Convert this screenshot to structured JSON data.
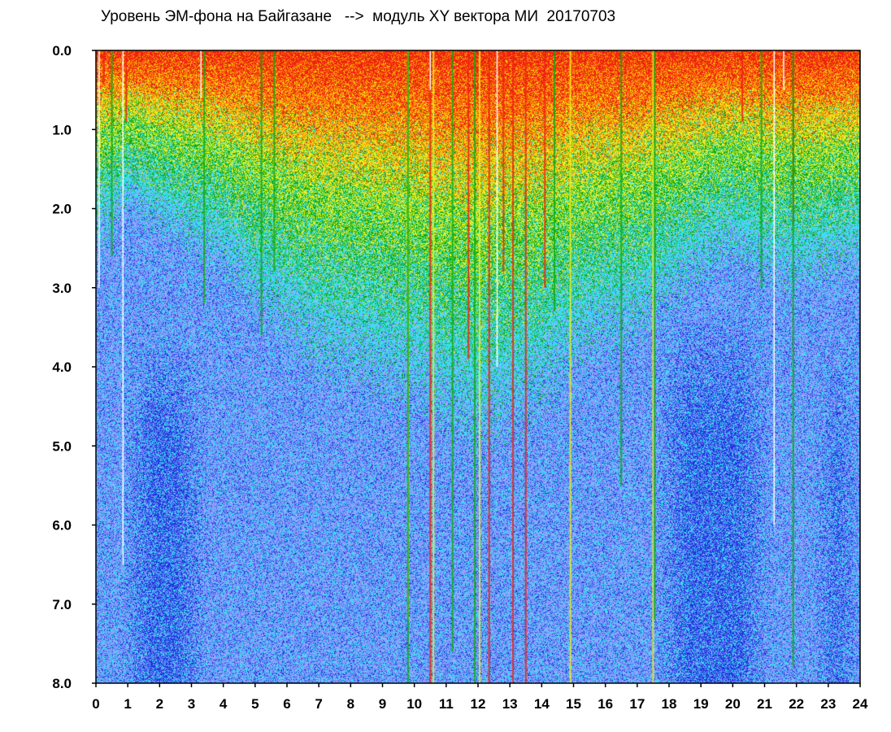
{
  "title": "Уровень ЭМ-фона на Байгазане   -->  модуль XY вектора МИ  20170703",
  "chart_data": {
    "type": "heatmap",
    "x_range": [
      0,
      24
    ],
    "y_range": [
      0,
      8
    ],
    "y_inverted": true,
    "x_ticks": [
      "0",
      "1",
      "2",
      "3",
      "4",
      "5",
      "6",
      "7",
      "8",
      "9",
      "10",
      "11",
      "12",
      "13",
      "14",
      "15",
      "16",
      "17",
      "18",
      "19",
      "20",
      "21",
      "22",
      "23",
      "24"
    ],
    "y_ticks": [
      "0.0",
      "1.0",
      "2.0",
      "3.0",
      "4.0",
      "5.0",
      "6.0",
      "7.0",
      "8.0"
    ],
    "grid": false,
    "legend": "none",
    "colorscale": [
      "#ffffff",
      "#2233dd",
      "#6a7cf5",
      "#9fa8ff",
      "#33e0f0",
      "#11aa11",
      "#eeee22",
      "#ff9900",
      "#ee2211"
    ],
    "intensity_profile": [
      {
        "hour": 0,
        "depth": 2.0
      },
      {
        "hour": 1,
        "depth": 1.6
      },
      {
        "hour": 2,
        "depth": 1.8
      },
      {
        "hour": 3,
        "depth": 2.0
      },
      {
        "hour": 4,
        "depth": 2.2
      },
      {
        "hour": 5,
        "depth": 2.6
      },
      {
        "hour": 6,
        "depth": 2.9
      },
      {
        "hour": 7,
        "depth": 3.2
      },
      {
        "hour": 8,
        "depth": 3.3
      },
      {
        "hour": 9,
        "depth": 3.4
      },
      {
        "hour": 10,
        "depth": 3.5
      },
      {
        "hour": 11,
        "depth": 3.8
      },
      {
        "hour": 12,
        "depth": 4.0
      },
      {
        "hour": 13,
        "depth": 3.8
      },
      {
        "hour": 14,
        "depth": 3.6
      },
      {
        "hour": 15,
        "depth": 3.2
      },
      {
        "hour": 16,
        "depth": 3.0
      },
      {
        "hour": 17,
        "depth": 2.9
      },
      {
        "hour": 18,
        "depth": 2.6
      },
      {
        "hour": 19,
        "depth": 2.3
      },
      {
        "hour": 20,
        "depth": 2.1
      },
      {
        "hour": 21,
        "depth": 2.3
      },
      {
        "hour": 22,
        "depth": 2.4
      },
      {
        "hour": 23,
        "depth": 2.3
      },
      {
        "hour": 24,
        "depth": 2.2
      }
    ],
    "dark_regions": [
      {
        "hour_from": 0.8,
        "hour_to": 3.5,
        "level_from": 3.5,
        "level_to": 8.0
      },
      {
        "hour_from": 17.6,
        "hour_to": 21.2,
        "level_from": 3.2,
        "level_to": 8.0
      },
      {
        "hour_from": 22.5,
        "hour_to": 24,
        "level_from": 3.6,
        "level_to": 8.0
      }
    ],
    "streaks": [
      {
        "hour": 0.25,
        "color": "#ee2211",
        "to": 0.4
      },
      {
        "hour": 0.5,
        "color": "#11aa11",
        "to": 2.6
      },
      {
        "hour": 0.95,
        "color": "#ee2211",
        "to": 0.9
      },
      {
        "hour": 3.4,
        "color": "#11aa11",
        "to": 3.2
      },
      {
        "hour": 5.2,
        "color": "#ee2211",
        "to": 0.7
      },
      {
        "hour": 5.2,
        "color": "#11aa11",
        "to": 3.6
      },
      {
        "hour": 5.6,
        "color": "#11aa11",
        "to": 2.8
      },
      {
        "hour": 9.8,
        "color": "#eeee22",
        "to": 7.2
      },
      {
        "hour": 9.8,
        "color": "#11aa11",
        "to": 8.0
      },
      {
        "hour": 10.5,
        "color": "#ee2211",
        "to": 8.0
      },
      {
        "hour": 10.6,
        "color": "#eeee22",
        "to": 8.0
      },
      {
        "hour": 11.2,
        "color": "#11aa11",
        "to": 7.6
      },
      {
        "hour": 11.7,
        "color": "#ee2211",
        "to": 3.9
      },
      {
        "hour": 11.9,
        "color": "#11aa11",
        "to": 8.0
      },
      {
        "hour": 12.05,
        "color": "#eeee22",
        "to": 8.0
      },
      {
        "hour": 12.35,
        "color": "#ee2211",
        "to": 8.0
      },
      {
        "hour": 12.8,
        "color": "#ee2211",
        "to": 2.8
      },
      {
        "hour": 13.1,
        "color": "#ee2211",
        "to": 8.0
      },
      {
        "hour": 13.5,
        "color": "#ee2211",
        "to": 8.0
      },
      {
        "hour": 14.1,
        "color": "#ee2211",
        "to": 3.0
      },
      {
        "hour": 14.4,
        "color": "#11aa11",
        "to": 3.3
      },
      {
        "hour": 14.9,
        "color": "#eeee22",
        "to": 8.0
      },
      {
        "hour": 16.5,
        "color": "#11aa11",
        "to": 5.5
      },
      {
        "hour": 17.5,
        "color": "#eeee22",
        "to": 8.0
      },
      {
        "hour": 17.55,
        "color": "#11aa11",
        "to": 7.2
      },
      {
        "hour": 20.3,
        "color": "#ee2211",
        "to": 0.9
      },
      {
        "hour": 20.9,
        "color": "#11aa11",
        "to": 3.0
      },
      {
        "hour": 21.9,
        "color": "#ee2211",
        "to": 2.2
      },
      {
        "hour": 21.9,
        "color": "#11aa11",
        "to": 7.8
      }
    ],
    "gaps": [
      {
        "hour": 0.1,
        "to": 3.0
      },
      {
        "hour": 0.85,
        "to": 6.5
      },
      {
        "hour": 3.3,
        "to": 0.6
      },
      {
        "hour": 10.5,
        "to": 0.5
      },
      {
        "hour": 12.6,
        "to": 4.0
      },
      {
        "hour": 21.3,
        "to": 6.0
      },
      {
        "hour": 21.6,
        "to": 0.5
      }
    ]
  }
}
